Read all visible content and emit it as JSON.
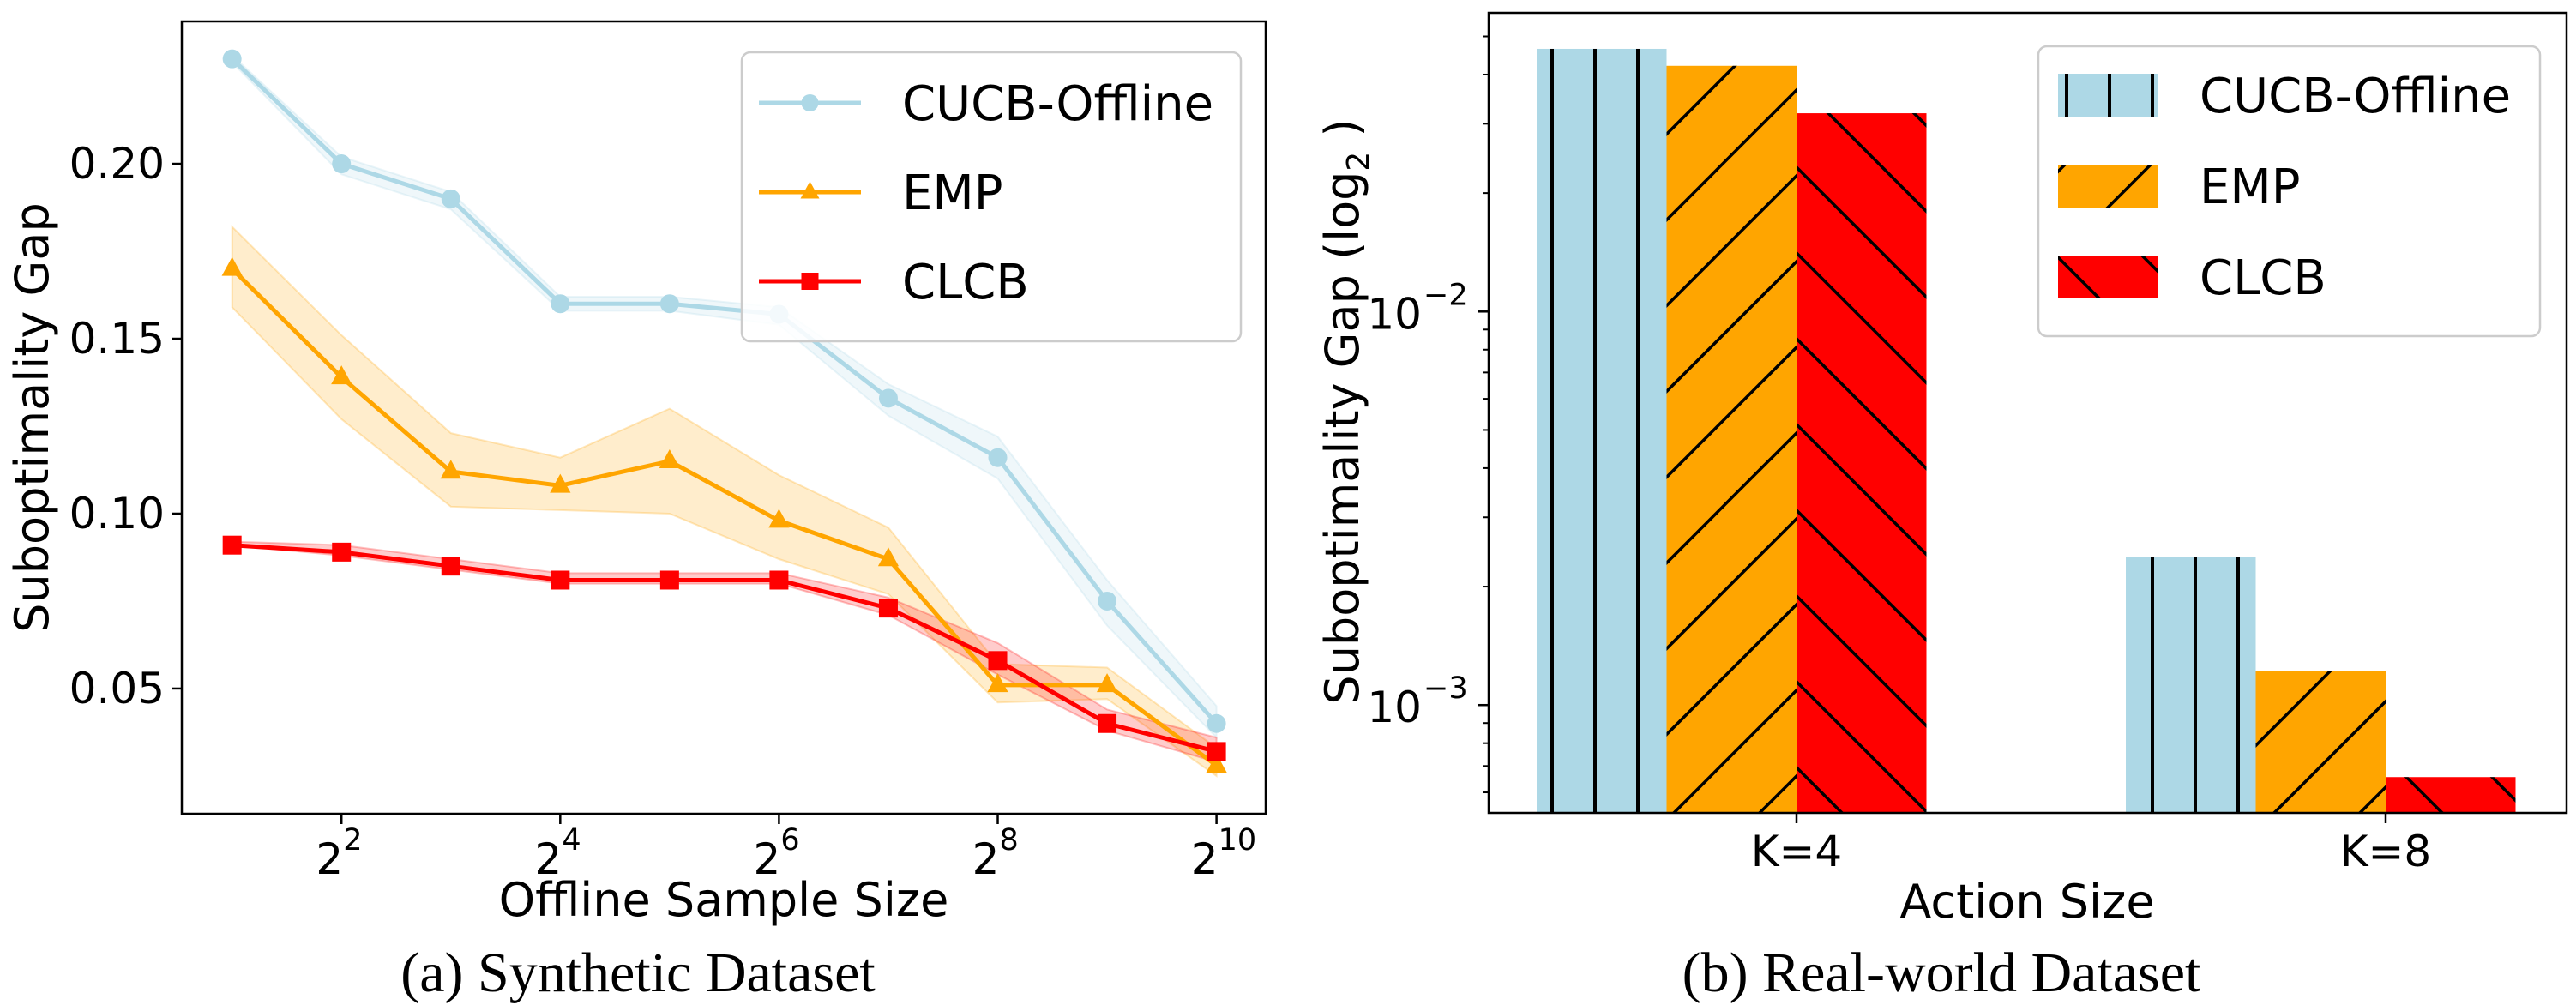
{
  "chart_data": [
    {
      "type": "line",
      "title": "",
      "caption": "(a) Synthetic Dataset",
      "xlabel": "Offline Sample Size",
      "ylabel": "Suboptimality Gap",
      "xscale": "log2",
      "x_exponents": [
        1,
        2,
        3,
        4,
        5,
        6,
        7,
        8,
        9,
        10
      ],
      "xticks": [
        {
          "base": "2",
          "exp": "2",
          "value": 2
        },
        {
          "base": "2",
          "exp": "4",
          "value": 4
        },
        {
          "base": "2",
          "exp": "6",
          "value": 6
        },
        {
          "base": "2",
          "exp": "8",
          "value": 8
        },
        {
          "base": "2",
          "exp": "10",
          "value": 10
        }
      ],
      "xlim_exp": [
        0.54,
        10.45
      ],
      "ylim": [
        0.0142,
        0.2407
      ],
      "yticks": [
        {
          "label": "0.05",
          "value": 0.05
        },
        {
          "label": "0.10",
          "value": 0.1
        },
        {
          "label": "0.15",
          "value": 0.15
        },
        {
          "label": "0.20",
          "value": 0.2
        }
      ],
      "grid": false,
      "legend_position": "top-right",
      "series": [
        {
          "name": "CUCB-Offline",
          "color": "#add8e6",
          "marker": "circle",
          "values": [
            0.23,
            0.2,
            0.19,
            0.16,
            0.16,
            0.157,
            0.133,
            0.116,
            0.075,
            0.04
          ],
          "lower": [
            0.229,
            0.197,
            0.187,
            0.158,
            0.158,
            0.154,
            0.128,
            0.11,
            0.068,
            0.036
          ],
          "upper": [
            0.231,
            0.202,
            0.192,
            0.162,
            0.162,
            0.159,
            0.137,
            0.122,
            0.081,
            0.045
          ]
        },
        {
          "name": "EMP",
          "color": "#ffa500",
          "marker": "triangle",
          "values": [
            0.17,
            0.139,
            0.112,
            0.108,
            0.115,
            0.098,
            0.087,
            0.051,
            0.051,
            0.028
          ],
          "lower": [
            0.159,
            0.127,
            0.102,
            0.101,
            0.1,
            0.087,
            0.077,
            0.046,
            0.047,
            0.025
          ],
          "upper": [
            0.182,
            0.151,
            0.123,
            0.116,
            0.13,
            0.111,
            0.096,
            0.057,
            0.056,
            0.033
          ]
        },
        {
          "name": "CLCB",
          "color": "#ff0000",
          "marker": "square",
          "values": [
            0.091,
            0.089,
            0.085,
            0.081,
            0.081,
            0.081,
            0.073,
            0.058,
            0.04,
            0.032
          ],
          "lower": [
            0.091,
            0.088,
            0.084,
            0.08,
            0.08,
            0.08,
            0.071,
            0.054,
            0.038,
            0.029
          ],
          "upper": [
            0.092,
            0.091,
            0.087,
            0.083,
            0.083,
            0.083,
            0.076,
            0.063,
            0.044,
            0.036
          ]
        }
      ]
    },
    {
      "type": "bar",
      "title": "",
      "caption": "(b) Real-world Dataset",
      "xlabel": "Action Size",
      "ylabel": "Suboptimality Gap (log",
      "ylabel_sub": "2",
      "ylabel_end": " )",
      "yscale": "log",
      "categories": [
        "K=4",
        "K=8"
      ],
      "ylim": [
        0.000532,
        0.0574
      ],
      "yticks": [
        {
          "base": "10",
          "exp": "−3",
          "value": 0.001
        },
        {
          "base": "10",
          "exp": "−2",
          "value": 0.01
        }
      ],
      "grid": false,
      "legend_position": "top-right",
      "series": [
        {
          "name": "CUCB-Offline",
          "color": "#add8e6",
          "hatch": "vertical",
          "values": [
            0.0465,
            0.00238
          ]
        },
        {
          "name": "EMP",
          "color": "#ffa500",
          "hatch": "forward-diagonal",
          "values": [
            0.0421,
            0.00122
          ]
        },
        {
          "name": "CLCB",
          "color": "#ff0000",
          "hatch": "back-diagonal",
          "values": [
            0.0319,
            0.000656
          ]
        }
      ]
    }
  ]
}
